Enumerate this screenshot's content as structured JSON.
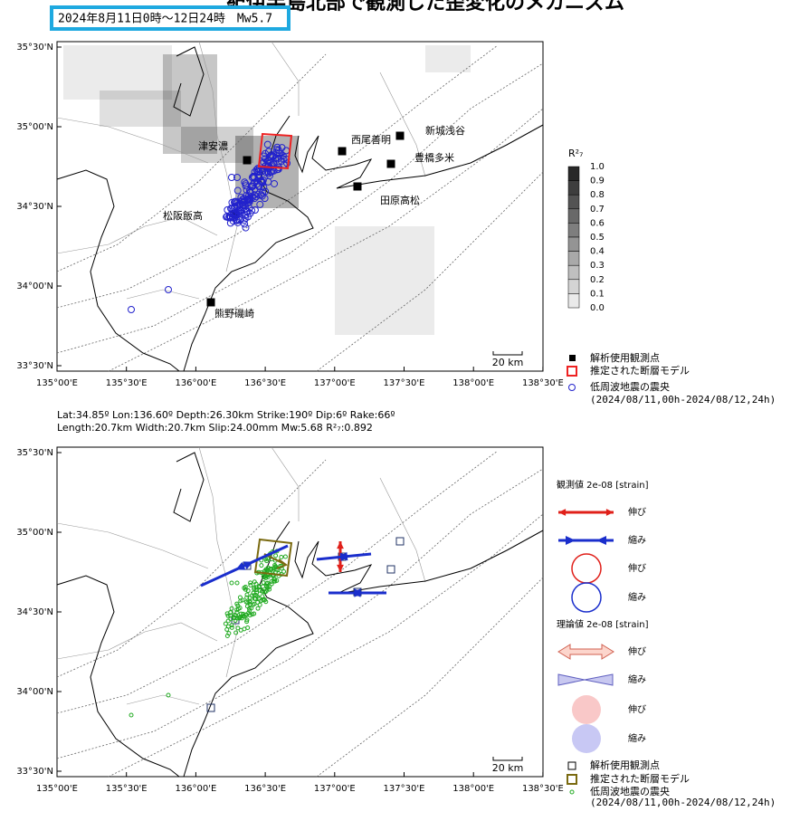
{
  "header": {
    "title": "紀伊半島北部で観測した歪変化のメカニズム",
    "period": "2024年8月11日0時～12日24時　Mw5.7"
  },
  "map1": {
    "lat_labels": [
      "35°30'N",
      "35°00'N",
      "34°30'N",
      "34°00'N",
      "33°30'N"
    ],
    "lon_labels": [
      "135°00'E",
      "135°30'E",
      "136°00'E",
      "136°30'E",
      "137°00'E",
      "137°30'E",
      "138°00'E",
      "138°30'E"
    ],
    "stations": [
      "津安濃",
      "西尾善明",
      "新城浅谷",
      "豊橋多米",
      "田原高松",
      "松阪飯高",
      "熊野磯崎"
    ],
    "scale": "20 km",
    "colorbar": {
      "title": "R²₇",
      "ticks": [
        "1.0",
        "0.9",
        "0.8",
        "0.7",
        "0.6",
        "0.5",
        "0.4",
        "0.3",
        "0.2",
        "0.1",
        "0.0"
      ]
    },
    "legend": [
      "解析使用観測点",
      "推定された断層モデル",
      "低周波地震の震央",
      "(2024/08/11,00h-2024/08/12,24h)"
    ]
  },
  "params": [
    "Lat:34.85º Lon:136.60º Depth:26.30km Strike:190º Dip:6º Rake:66º",
    "Length:20.7km Width:20.7km Slip:24.00mm Mw:5.68 R²₇:0.892"
  ],
  "map2": {
    "lat_labels": [
      "35°30'N",
      "35°00'N",
      "34°30'N",
      "34°00'N",
      "33°30'N"
    ],
    "lon_labels": [
      "135°00'E",
      "135°30'E",
      "136°00'E",
      "136°30'E",
      "137°00'E",
      "137°30'E",
      "138°00'E",
      "138°30'E"
    ],
    "scale": "20 km",
    "observed": {
      "title": "観測値 2e-08 [strain]",
      "items": [
        "伸び",
        "縮み",
        "伸び",
        "縮み"
      ]
    },
    "theory": {
      "title": "理論値 2e-08 [strain]",
      "items": [
        "伸び",
        "縮み",
        "伸び",
        "縮み"
      ]
    },
    "legend": [
      "解析使用観測点",
      "推定された断層モデル",
      "低周波地震の震央",
      "(2024/08/11,00h-2024/08/12,24h)"
    ]
  }
}
